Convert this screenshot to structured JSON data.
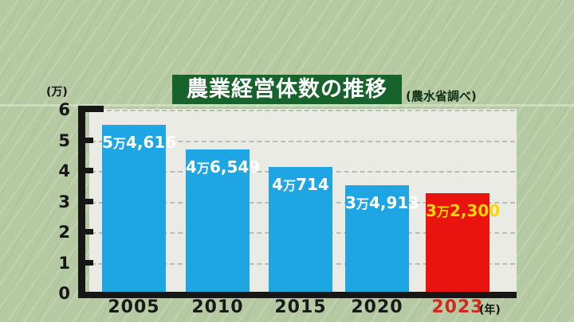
{
  "title": {
    "text": "農業経営体数の推移",
    "source_note": "(農水省調べ)"
  },
  "axis": {
    "unit_label": "(万)",
    "year_suffix": "(年)",
    "y_tick_labels": [
      "0",
      "1",
      "2",
      "3",
      "4",
      "5",
      "6"
    ]
  },
  "chart_data": {
    "type": "bar",
    "title": "農業経営体数の推移",
    "source_note": "(農水省調べ)",
    "unit": "万",
    "categories": [
      "2005",
      "2010",
      "2015",
      "2020",
      "2023"
    ],
    "values": [
      5.4616,
      4.6549,
      4.0714,
      3.4913,
      3.23
    ],
    "value_labels": [
      "5万4,616",
      "4万6,549",
      "4万714",
      "3万4,913",
      "3万2,300"
    ],
    "counts": [
      54616,
      46549,
      40714,
      34913,
      32300
    ],
    "ylim": [
      0,
      6
    ],
    "y_ticks": [
      0,
      1,
      2,
      3,
      4,
      5,
      6
    ],
    "grid": "horizontal-dashed",
    "legend": "none",
    "highlight_index": 4,
    "xlabel_suffix": "(年)"
  },
  "colors": {
    "background": "#b5c9a3",
    "plot_background": "#e9ebe4",
    "title_box": "#17632b",
    "title_text": "#ffffff",
    "source_text": "#0e2f13",
    "bar_blue": "#1ea6e4",
    "bar_red": "#e8140d",
    "bar_label_white": "#ffffff",
    "bar_label_yellow": "#ffd700",
    "axis": "#161616",
    "gridline": "#b9bdb3",
    "year_label": "#191919",
    "year_label_highlight": "#d2291c"
  }
}
